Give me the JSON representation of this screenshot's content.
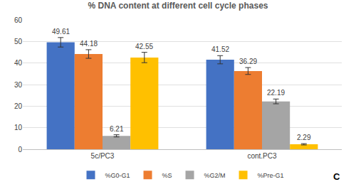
{
  "chart_data": {
    "type": "bar",
    "title": "% DNA content at different cell cycle phases",
    "categories": [
      "5c/PC3",
      "cont.PC3"
    ],
    "series": [
      {
        "name": "%G0-G1",
        "color": "#4472c4",
        "values": [
          49.61,
          41.52
        ],
        "errors": [
          2.2,
          1.9
        ]
      },
      {
        "name": "%S",
        "color": "#ed7d31",
        "values": [
          44.18,
          36.29
        ],
        "errors": [
          2.0,
          1.6
        ]
      },
      {
        "name": "%G2/M",
        "color": "#a5a5a5",
        "values": [
          6.21,
          22.19
        ],
        "errors": [
          0.5,
          1.1
        ]
      },
      {
        "name": "%Pre-G1",
        "color": "#ffc000",
        "values": [
          42.55,
          2.29
        ],
        "errors": [
          2.4,
          0.3
        ]
      }
    ],
    "ylim": [
      0,
      60
    ],
    "yticks": [
      0,
      10,
      20,
      30,
      40,
      50,
      60
    ],
    "grid": true,
    "legend": "bottom",
    "data_labels": true,
    "annotations": [
      "C"
    ]
  }
}
